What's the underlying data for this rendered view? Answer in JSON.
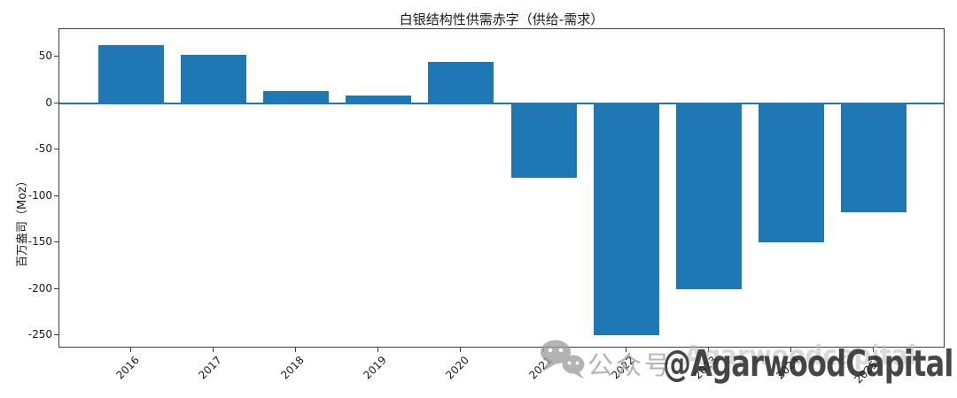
{
  "chart_data": {
    "type": "bar",
    "title": "白银结构性供需赤字（供给-需求）",
    "xlabel": "",
    "ylabel": "百万盎司（Moz）",
    "categories": [
      "2016",
      "2017",
      "2018",
      "2019",
      "2020",
      "2021",
      "2022",
      "2023",
      "2024",
      "2025F"
    ],
    "values": [
      63,
      52,
      13,
      9,
      45,
      -80,
      -250,
      -200,
      -150,
      -117
    ],
    "unit": "Moz",
    "ylim": [
      -264,
      80
    ],
    "yticks": [
      50,
      0,
      -50,
      -100,
      -150,
      -200,
      -250
    ],
    "x_tick_rotation": 45,
    "grid": false,
    "legend": "none",
    "bar_color": "#1f77b4",
    "zero_line_color": "#1f77b4",
    "axis_color": "#3c3c3c",
    "background": "#ffffff"
  },
  "watermark": {
    "icon": "wechat-icon",
    "platform_label": "公众号",
    "handle_light": "Agarwoodcapital",
    "handle_bold": "@AgarwoodCapital",
    "icon_color": "#9e9e9e",
    "label_color": "#a8a8a8",
    "bold_color": "#262626"
  }
}
